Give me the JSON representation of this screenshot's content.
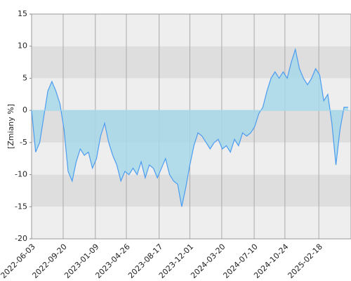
{
  "chart_data": {
    "type": "area",
    "y_label": "[Zmiany %]",
    "x": [
      "2022-06-03",
      "2022-06-17",
      "2022-07-01",
      "2022-07-15",
      "2022-07-29",
      "2022-08-12",
      "2022-08-26",
      "2022-09-09",
      "2022-09-23",
      "2022-10-07",
      "2022-10-21",
      "2022-11-04",
      "2022-11-18",
      "2022-12-02",
      "2022-12-16",
      "2022-12-30",
      "2023-01-13",
      "2023-01-27",
      "2023-02-10",
      "2023-02-24",
      "2023-03-10",
      "2023-03-24",
      "2023-04-07",
      "2023-04-21",
      "2023-05-05",
      "2023-05-19",
      "2023-06-02",
      "2023-06-16",
      "2023-06-30",
      "2023-07-14",
      "2023-07-28",
      "2023-08-11",
      "2023-08-25",
      "2023-09-08",
      "2023-09-22",
      "2023-10-06",
      "2023-10-20",
      "2023-11-03",
      "2023-11-17",
      "2023-12-01",
      "2023-12-15",
      "2023-12-29",
      "2024-01-12",
      "2024-01-26",
      "2024-02-09",
      "2024-02-23",
      "2024-03-08",
      "2024-03-22",
      "2024-04-05",
      "2024-04-19",
      "2024-05-03",
      "2024-05-17",
      "2024-05-31",
      "2024-06-14",
      "2024-06-28",
      "2024-07-12",
      "2024-07-26",
      "2024-08-09",
      "2024-08-23",
      "2024-09-06",
      "2024-09-20",
      "2024-10-04",
      "2024-10-18",
      "2024-11-01",
      "2024-11-15",
      "2024-11-29",
      "2024-12-13",
      "2024-12-27",
      "2025-01-10",
      "2025-01-24",
      "2025-02-07",
      "2025-02-21",
      "2025-03-07",
      "2025-03-21",
      "2025-04-04",
      "2025-04-18",
      "2025-05-02",
      "2025-05-16",
      "2025-05-30"
    ],
    "series": [
      {
        "color": "#4c9cf0",
        "fill": "#a8d8ea",
        "values": [
          0,
          -6.5,
          -5,
          -1,
          3,
          4.5,
          3,
          1,
          -3,
          -9.5,
          -11,
          -8,
          -6,
          -7,
          -6.5,
          -9,
          -7.5,
          -4,
          -2,
          -5,
          -7,
          -8.5,
          -11,
          -9.5,
          -10,
          -9,
          -10,
          -8,
          -10.5,
          -8.5,
          -9,
          -10.5,
          -9,
          -7.5,
          -10,
          -11,
          -11.5,
          -15,
          -12,
          -8.5,
          -5.5,
          -3.5,
          -4,
          -5,
          -6,
          -5,
          -4.5,
          -6,
          -5.5,
          -6.5,
          -4.5,
          -5.5,
          -3.5,
          -4,
          -3.5,
          -2.5,
          -0.5,
          0.5,
          3,
          5,
          6,
          5,
          6,
          5,
          7.5,
          9.5,
          6.5,
          5,
          4,
          5,
          6.5,
          5.5,
          1.5,
          2.5,
          -2,
          -8.5,
          -3,
          0.5,
          0.5
        ]
      }
    ],
    "xlim": [
      "2022-06-03",
      "2025-06-09"
    ],
    "xticks": [
      "2022-06-03",
      "2022-09-20",
      "2023-01-09",
      "2023-04-26",
      "2023-08-17",
      "2023-12-01",
      "2024-03-20",
      "2024-07-10",
      "2024-10-24",
      "2025-02-18"
    ],
    "ylim": [
      -20,
      15
    ],
    "yticks": [
      -20,
      -15,
      -10,
      -5,
      0,
      5,
      10,
      15
    ],
    "grid": true
  }
}
